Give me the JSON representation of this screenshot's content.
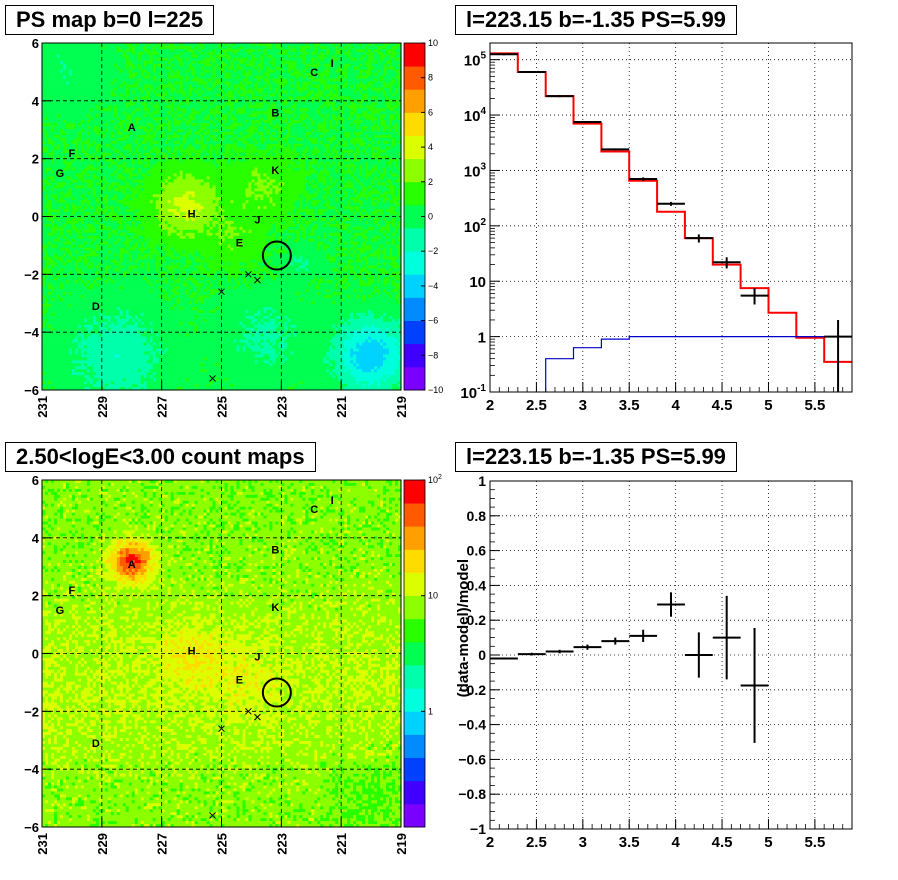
{
  "chart_data": [
    {
      "type": "heatmap",
      "title": "PS map b=0 l=225",
      "xlabel": "",
      "ylabel": "",
      "xlim": [
        231,
        219
      ],
      "ylim": [
        -6,
        6
      ],
      "x_ticks": [
        "231",
        "229",
        "227",
        "225",
        "223",
        "221",
        "219"
      ],
      "y_ticks": [
        "6",
        "4",
        "2",
        "0",
        "−2",
        "−4",
        "−6"
      ],
      "colorbar": {
        "range": [
          -10,
          10
        ],
        "scale": "linear",
        "ticks": [
          "10",
          "8",
          "6",
          "4",
          "2",
          "0",
          "−2",
          "−4",
          "−6",
          "−8",
          "−10"
        ]
      },
      "grid": "dashed",
      "sources": [
        {
          "label": "A",
          "l": 228.0,
          "b": 3.1
        },
        {
          "label": "B",
          "l": 223.2,
          "b": 3.6
        },
        {
          "label": "C",
          "l": 221.9,
          "b": 5.0
        },
        {
          "label": "I",
          "l": 221.3,
          "b": 5.3
        },
        {
          "label": "D",
          "l": 229.2,
          "b": -3.1
        },
        {
          "label": "E",
          "l": 224.4,
          "b": -0.9
        },
        {
          "label": "F",
          "l": 230.0,
          "b": 2.2
        },
        {
          "label": "G",
          "l": 230.4,
          "b": 1.5
        },
        {
          "label": "H",
          "l": 226.0,
          "b": 0.1
        },
        {
          "label": "J",
          "l": 223.8,
          "b": -0.1
        },
        {
          "label": "K",
          "l": 223.2,
          "b": 1.6
        }
      ],
      "crosses": [
        [
          224.1,
          -2.0
        ],
        [
          223.8,
          -2.2
        ],
        [
          225.0,
          -2.6
        ],
        [
          225.3,
          -5.6
        ]
      ],
      "circle": {
        "l": 223.15,
        "b": -1.35
      },
      "features": [
        "hot region near H (l≈226, b≈0.3)",
        "cold region near l≈220, b≈−4.8"
      ]
    },
    {
      "type": "line",
      "title": "l=223.15 b=-1.35 PS=5.99",
      "xlabel": "",
      "ylabel": "",
      "xlim": [
        2,
        5.9
      ],
      "ylim": [
        0.1,
        200000
      ],
      "yscale": "log",
      "x_ticks": [
        "2",
        "2.5",
        "3",
        "3.5",
        "4",
        "4.5",
        "5",
        "5.5"
      ],
      "y_ticks": [
        "10^5",
        "10^4",
        "10^3",
        "10^2",
        "10",
        "1",
        "10^-1"
      ],
      "grid": "dotted",
      "series": [
        {
          "style": "step",
          "color": "#ff0000",
          "bins": [
            2.0,
            2.3,
            2.6,
            2.9,
            3.2,
            3.5,
            3.8,
            4.1,
            4.4,
            4.7,
            5.0,
            5.3,
            5.6,
            5.9
          ],
          "values": [
            130000,
            60000,
            22000,
            7000,
            2200,
            650,
            180,
            60,
            20,
            7.5,
            2.7,
            0.95,
            0.35
          ]
        },
        {
          "style": "step",
          "color": "#0000cc",
          "bins": [
            2.6,
            2.9,
            3.2,
            3.5,
            3.8,
            4.1,
            4.4,
            4.7,
            5.0,
            5.3,
            5.6,
            5.9
          ],
          "values": [
            0.4,
            0.63,
            0.9,
            1.0,
            1.0,
            1.0,
            1.0,
            1.0,
            1.0,
            1.0,
            1.0
          ]
        },
        {
          "style": "errorbar",
          "color": "#000000",
          "x": [
            2.15,
            2.45,
            2.75,
            3.05,
            3.35,
            3.65,
            3.95,
            4.25,
            4.55,
            4.85,
            5.75
          ],
          "xerr": 0.15,
          "y": [
            125000,
            60000,
            22000,
            7500,
            2400,
            700,
            250,
            60,
            22,
            5.5,
            1.0
          ],
          "ylo": [
            120000,
            58000,
            21000,
            7200,
            2300,
            650,
            230,
            50,
            17,
            3.8,
            0.1
          ],
          "yhi": [
            130000,
            62000,
            23000,
            7800,
            2500,
            750,
            270,
            70,
            27,
            7.5,
            2.0
          ]
        }
      ]
    },
    {
      "type": "heatmap",
      "title": "2.50<logE<3.00 count maps",
      "xlabel": "",
      "ylabel": "",
      "xlim": [
        231,
        219
      ],
      "ylim": [
        -6,
        6
      ],
      "x_ticks": [
        "231",
        "229",
        "227",
        "225",
        "223",
        "221",
        "219"
      ],
      "y_ticks": [
        "6",
        "4",
        "2",
        "0",
        "−2",
        "−4",
        "−6"
      ],
      "colorbar": {
        "scale": "log",
        "range": [
          0.1,
          100
        ],
        "ticks": [
          "10^2",
          "10",
          "1"
        ]
      },
      "grid": "dashed",
      "sources": "same labels as first map",
      "features": [
        "bright source A (l≈228, b≈3.2)",
        "ridge along b≈−1 near l 226–222"
      ]
    },
    {
      "type": "scatter",
      "title": "l=223.15 b=-1.35 PS=5.99",
      "xlabel": "",
      "ylabel": "(data-model)/model",
      "xlim": [
        2,
        5.9
      ],
      "ylim": [
        -1,
        1
      ],
      "x_ticks": [
        "2",
        "2.5",
        "3",
        "3.5",
        "4",
        "4.5",
        "5",
        "5.5"
      ],
      "y_ticks": [
        "1",
        "0.8",
        "0.6",
        "0.4",
        "0.2",
        "0",
        "−0.2",
        "−0.4",
        "−0.6",
        "−0.8",
        "−1"
      ],
      "grid": "dotted",
      "points": [
        {
          "x": 2.15,
          "xerr": 0.15,
          "y": -0.02,
          "yerr": 0.006
        },
        {
          "x": 2.45,
          "xerr": 0.15,
          "y": 0.005,
          "yerr": 0.008
        },
        {
          "x": 2.75,
          "xerr": 0.15,
          "y": 0.02,
          "yerr": 0.01
        },
        {
          "x": 3.05,
          "xerr": 0.15,
          "y": 0.045,
          "yerr": 0.015
        },
        {
          "x": 3.35,
          "xerr": 0.15,
          "y": 0.08,
          "yerr": 0.02
        },
        {
          "x": 3.65,
          "xerr": 0.15,
          "y": 0.11,
          "yerr": 0.035
        },
        {
          "x": 3.95,
          "xerr": 0.15,
          "y": 0.29,
          "yerr": 0.07
        },
        {
          "x": 4.25,
          "xerr": 0.15,
          "y": 0.0,
          "yerr": 0.13
        },
        {
          "x": 4.55,
          "xerr": 0.15,
          "y": 0.1,
          "yerr": 0.24
        },
        {
          "x": 4.85,
          "xerr": 0.15,
          "y": -0.175,
          "yerr": 0.33
        }
      ]
    }
  ]
}
